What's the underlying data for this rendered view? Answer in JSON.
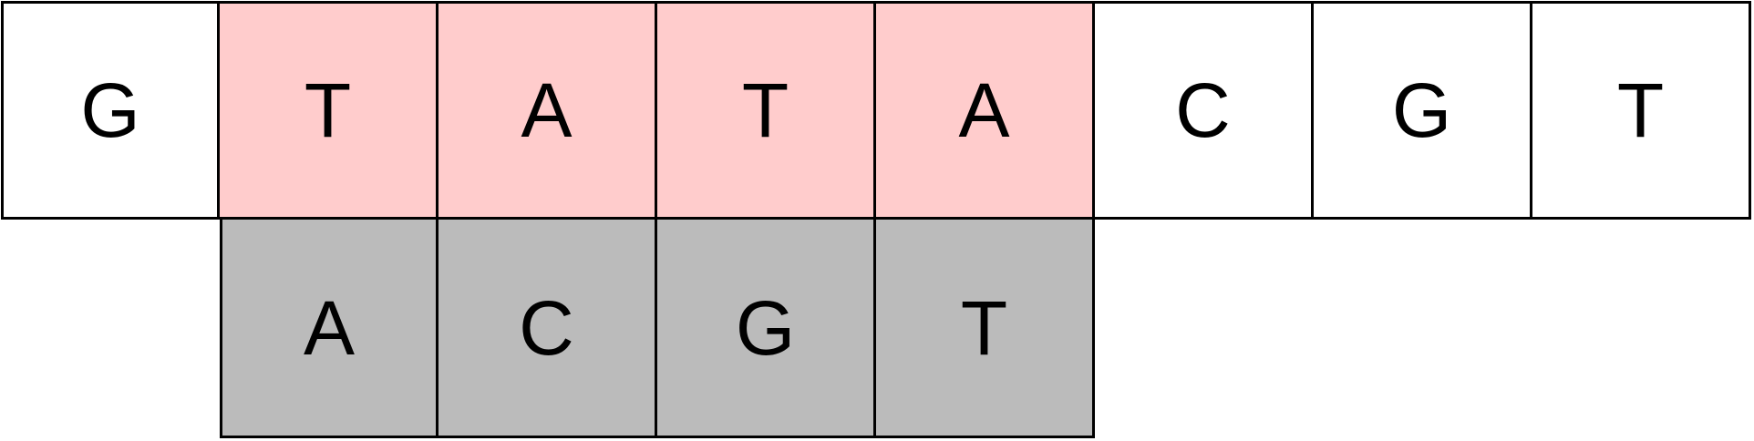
{
  "colors": {
    "border": "#000000",
    "normal": "#ffffff",
    "highlight": "#ffcccc",
    "pattern": "#bbbbbb"
  },
  "sequence": {
    "cells": [
      {
        "letter": "G",
        "highlight": false
      },
      {
        "letter": "T",
        "highlight": true
      },
      {
        "letter": "A",
        "highlight": true
      },
      {
        "letter": "T",
        "highlight": true
      },
      {
        "letter": "A",
        "highlight": true
      },
      {
        "letter": "C",
        "highlight": false
      },
      {
        "letter": "G",
        "highlight": false
      },
      {
        "letter": "T",
        "highlight": false
      }
    ]
  },
  "pattern": {
    "cells": [
      {
        "letter": "A"
      },
      {
        "letter": "C"
      },
      {
        "letter": "G"
      },
      {
        "letter": "T"
      }
    ]
  }
}
